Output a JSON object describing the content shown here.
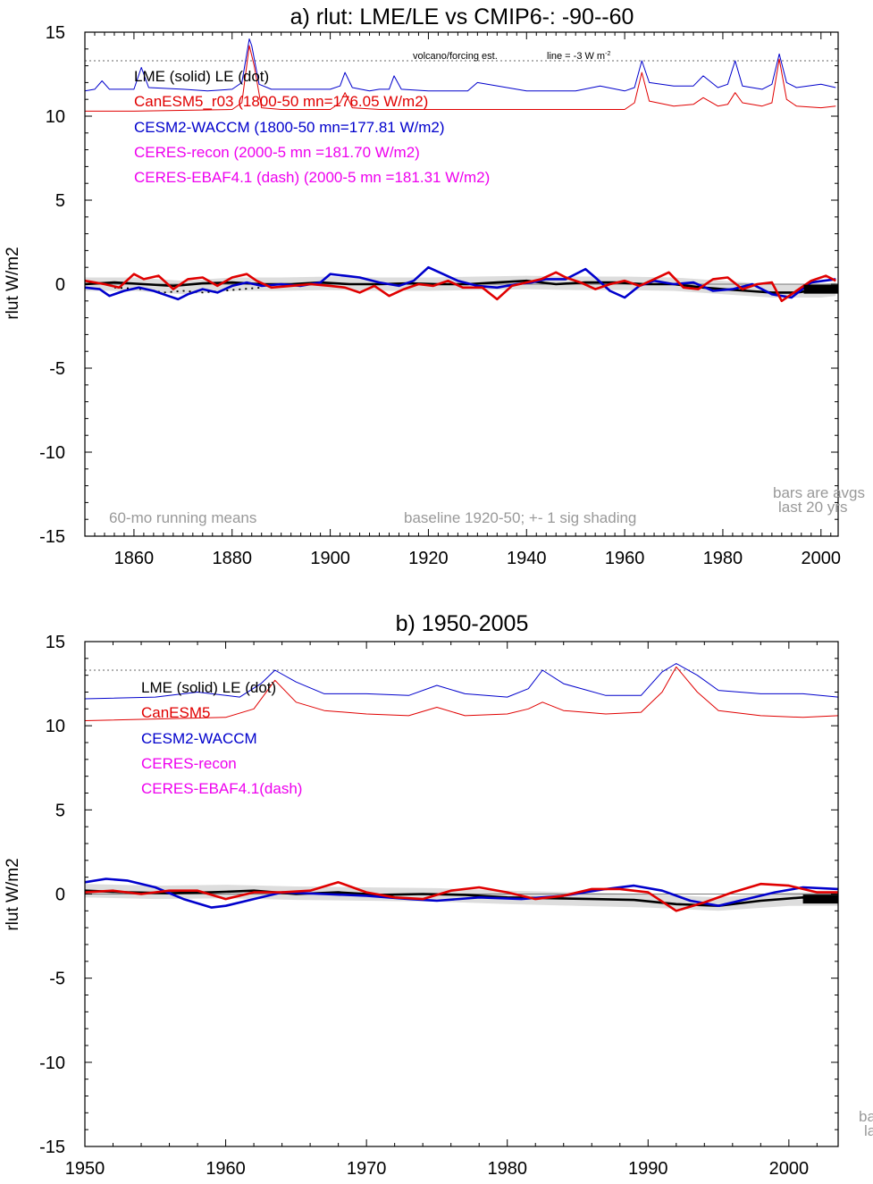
{
  "chart_data": [
    {
      "type": "line",
      "title": "a) rlut: LME/LE vs CMIP6-: -90--60",
      "ylabel": "rlut W/m2",
      "xlabel": "",
      "xlim": [
        1850,
        2003.5
      ],
      "ylim": [
        -15,
        15
      ],
      "x_ticks": [
        1860,
        1880,
        1900,
        1920,
        1940,
        1960,
        1980,
        2000
      ],
      "y_ticks": [
        15,
        10,
        5,
        0,
        -5,
        -10,
        -15
      ],
      "grid": false,
      "legend": [
        {
          "text": "LME (solid)   LE (dot)",
          "color": "#000000"
        },
        {
          "text": "CanESM5_r03 (1800-50 mn=176.05 W/m2)",
          "color": "#e00000"
        },
        {
          "text": "CESM2-WACCM (1800-50 mn=177.81 W/m2)",
          "color": "#0000cc"
        },
        {
          "text": "CERES-recon (2000-5 mn =181.70 W/m2)",
          "color": "#ee00ee"
        },
        {
          "text": "CERES-EBAF4.1 (dash) (2000-5 mn =181.31 W/m2)",
          "color": "#ee00ee"
        }
      ],
      "annotations": {
        "volcano": "volcano/forcing est.",
        "line_note": "line = -3 W m",
        "line_note_sup": "-2",
        "running": "60-mo running means",
        "baseline": "baseline 1920-50; +- 1 sig shading",
        "bars1": "bars are avgs",
        "bars2": "last 20 yrs"
      },
      "reference_line_y": 13.3,
      "series": [
        {
          "name": "CESM2-WACCM (volcano/forcing est.)",
          "color": "#0000cc",
          "width": 1,
          "x": [
            1850,
            1852,
            1853.5,
            1855,
            1860,
            1861.5,
            1863,
            1870,
            1875,
            1880,
            1882,
            1883.5,
            1884,
            1885.5,
            1888,
            1895,
            1900,
            1902,
            1903,
            1904.5,
            1908,
            1910,
            1912,
            1913,
            1914.5,
            1920,
            1928,
            1930,
            1938,
            1940,
            1950,
            1955,
            1960,
            1962,
            1963.5,
            1965,
            1970,
            1974,
            1976,
            1979,
            1981,
            1982.5,
            1984,
            1988,
            1990,
            1991.5,
            1993,
            1995,
            2000,
            2003
          ],
          "y": [
            11.5,
            11.6,
            12.1,
            11.6,
            11.6,
            12.9,
            11.7,
            11.6,
            11.5,
            11.6,
            12.0,
            14.6,
            14.2,
            11.9,
            11.6,
            11.6,
            11.6,
            11.8,
            12.6,
            11.7,
            11.5,
            11.6,
            11.6,
            12.4,
            11.6,
            11.5,
            11.5,
            12.0,
            11.6,
            11.5,
            11.5,
            11.8,
            11.5,
            11.7,
            13.3,
            12.0,
            11.8,
            11.8,
            12.4,
            11.7,
            11.9,
            13.3,
            11.8,
            11.6,
            11.9,
            13.7,
            12.0,
            11.7,
            11.9,
            11.7
          ]
        },
        {
          "name": "CanESM5 (volcano/forcing est.)",
          "color": "#e00000",
          "width": 1,
          "x": [
            1850,
            1860,
            1880,
            1882,
            1883.5,
            1884.5,
            1886,
            1890,
            1900,
            1902,
            1903,
            1904.5,
            1910,
            1920,
            1940,
            1950,
            1960,
            1962,
            1963.5,
            1965,
            1970,
            1974,
            1976,
            1979,
            1981,
            1982.5,
            1984,
            1988,
            1990,
            1991.5,
            1993,
            1995,
            2000,
            2003
          ],
          "y": [
            10.3,
            10.3,
            10.4,
            10.8,
            14.2,
            13.0,
            10.5,
            10.4,
            10.4,
            10.8,
            11.4,
            10.5,
            10.4,
            10.4,
            10.4,
            10.4,
            10.4,
            10.8,
            12.6,
            10.9,
            10.6,
            10.7,
            11.1,
            10.6,
            10.7,
            11.4,
            10.8,
            10.6,
            10.8,
            13.4,
            11.0,
            10.6,
            10.5,
            10.6
          ]
        },
        {
          "name": "LME",
          "color": "#000000",
          "width": 2.6,
          "x": [
            1850,
            1856,
            1862,
            1868,
            1874,
            1880,
            1886,
            1892,
            1898,
            1904,
            1910,
            1916,
            1922,
            1928,
            1934,
            1940,
            1946,
            1952,
            1958,
            1964,
            1970,
            1976,
            1980,
            1985,
            1990,
            1995,
            2000,
            2003
          ],
          "y": [
            0.0,
            0.1,
            0.0,
            -0.1,
            0.05,
            0.1,
            0.0,
            0.0,
            0.1,
            0.0,
            0.0,
            0.05,
            0.0,
            0.0,
            0.1,
            0.2,
            0.0,
            0.1,
            0.1,
            0.0,
            0.0,
            -0.2,
            -0.3,
            -0.4,
            -0.5,
            -0.5,
            -0.3,
            -0.3
          ]
        },
        {
          "name": "LE",
          "color": "#000000",
          "width": 1.8,
          "dash": "2 5",
          "x": [
            1856,
            1862,
            1866,
            1870,
            1874,
            1878,
            1882,
            1886
          ],
          "y": [
            -0.2,
            -0.3,
            -0.5,
            -0.4,
            -0.5,
            -0.4,
            -0.3,
            -0.2
          ]
        },
        {
          "name": "CESM2-WACCM",
          "color": "#0000cc",
          "width": 2.6,
          "x": [
            1850,
            1853,
            1855,
            1858,
            1861,
            1864,
            1867,
            1869,
            1871,
            1874,
            1877,
            1880,
            1883,
            1886,
            1890,
            1894,
            1898,
            1900,
            1903,
            1906,
            1910,
            1914,
            1917,
            1920,
            1923,
            1926,
            1930,
            1934,
            1938,
            1941,
            1944,
            1948,
            1952,
            1954,
            1957,
            1960,
            1963,
            1966,
            1970,
            1974,
            1978,
            1982,
            1986,
            1990,
            1994,
            1998,
            2003
          ],
          "y": [
            -0.2,
            -0.3,
            -0.7,
            -0.4,
            -0.2,
            -0.4,
            -0.7,
            -0.9,
            -0.6,
            -0.3,
            -0.5,
            -0.1,
            0.1,
            -0.1,
            0.0,
            -0.1,
            0.1,
            0.6,
            0.5,
            0.4,
            0.1,
            -0.1,
            0.2,
            1.0,
            0.6,
            0.2,
            -0.1,
            -0.2,
            0.0,
            0.1,
            0.3,
            0.3,
            0.9,
            0.4,
            -0.4,
            -0.8,
            -0.1,
            0.2,
            0.0,
            0.1,
            -0.4,
            -0.3,
            0.0,
            -0.6,
            -0.8,
            0.1,
            0.3
          ]
        },
        {
          "name": "CanESM5",
          "color": "#e00000",
          "width": 2.6,
          "x": [
            1850,
            1854,
            1857,
            1860,
            1862,
            1865,
            1868,
            1871,
            1874,
            1877,
            1880,
            1883,
            1885,
            1888,
            1892,
            1896,
            1900,
            1903,
            1906,
            1909,
            1912,
            1915,
            1918,
            1921,
            1924,
            1927,
            1931,
            1934,
            1937,
            1940,
            1943,
            1946,
            1948,
            1951,
            1954,
            1957,
            1960,
            1963,
            1966,
            1969,
            1972,
            1975,
            1978,
            1981,
            1984,
            1987,
            1990,
            1992,
            1995,
            1998,
            2001,
            2003
          ],
          "y": [
            0.2,
            0.0,
            -0.2,
            0.6,
            0.3,
            0.5,
            -0.3,
            0.3,
            0.4,
            -0.1,
            0.4,
            0.6,
            0.2,
            -0.2,
            -0.1,
            0.0,
            -0.1,
            -0.2,
            -0.5,
            -0.1,
            -0.7,
            -0.3,
            0.0,
            -0.1,
            0.2,
            -0.2,
            -0.2,
            -0.9,
            -0.1,
            0.1,
            0.3,
            0.7,
            0.4,
            0.1,
            -0.3,
            0.0,
            0.2,
            -0.1,
            0.3,
            0.7,
            -0.2,
            -0.3,
            0.3,
            0.4,
            -0.3,
            0.0,
            0.1,
            -1.0,
            -0.4,
            0.2,
            0.5,
            0.2
          ]
        }
      ],
      "shading": {
        "color": "#dddddd",
        "x": [
          1850,
          1860,
          1870,
          1880,
          1890,
          1900,
          1910,
          1920,
          1930,
          1940,
          1950,
          1960,
          1970,
          1980,
          1990,
          2000,
          2003
        ],
        "center": [
          0.0,
          0.0,
          -0.2,
          0.0,
          0.0,
          0.05,
          0.0,
          0.0,
          0.05,
          0.1,
          0.05,
          0.05,
          0.0,
          -0.2,
          -0.4,
          -0.4,
          -0.3
        ],
        "spread": 0.4
      },
      "bars": [
        {
          "x0": 1996.5,
          "x1": 2003.5,
          "y": -0.3,
          "color": "#000000"
        }
      ]
    },
    {
      "type": "line",
      "title": "b) 1950-2005",
      "ylabel": "rlut W/m2",
      "xlabel": "",
      "xlim": [
        1950,
        2003.5
      ],
      "ylim": [
        -15,
        15
      ],
      "x_ticks": [
        1950,
        1960,
        1970,
        1980,
        1990,
        2000
      ],
      "y_ticks": [
        15,
        10,
        5,
        0,
        -5,
        -10,
        -15
      ],
      "grid": false,
      "legend": [
        {
          "text": "LME (solid)      LE (dot)",
          "color": "#000000"
        },
        {
          "text": "CanESM5",
          "color": "#e00000"
        },
        {
          "text": "CESM2-WACCM",
          "color": "#0000cc"
        },
        {
          "text": "CERES-recon",
          "color": "#ee00ee"
        },
        {
          "text": "CERES-EBAF4.1(dash)",
          "color": "#ee00ee"
        }
      ],
      "annotations": {
        "bars1": "ba",
        "bars2": "la"
      },
      "reference_line_y": 13.3,
      "series": [
        {
          "name": "CESM2-WACCM (volcano/forcing est.)",
          "color": "#0000cc",
          "width": 1,
          "x": [
            1950,
            1955,
            1958,
            1961,
            1962.5,
            1963.5,
            1965,
            1967,
            1970,
            1973,
            1975,
            1977,
            1980,
            1981.5,
            1982.5,
            1984,
            1987,
            1989.5,
            1991,
            1992,
            1993.5,
            1995,
            1998,
            2001,
            2003.5
          ],
          "y": [
            11.6,
            11.7,
            12.0,
            11.7,
            12.5,
            13.3,
            12.6,
            11.9,
            11.9,
            11.8,
            12.4,
            11.9,
            11.7,
            12.2,
            13.3,
            12.5,
            11.8,
            11.8,
            13.2,
            13.7,
            13.0,
            12.1,
            11.9,
            11.9,
            11.7
          ]
        },
        {
          "name": "CanESM5 (volcano/forcing est.)",
          "color": "#e00000",
          "width": 1,
          "x": [
            1950,
            1955,
            1960,
            1962,
            1963.5,
            1965,
            1967,
            1970,
            1973,
            1975,
            1977,
            1980,
            1981.5,
            1982.5,
            1984,
            1987,
            1989.5,
            1991,
            1992,
            1993.5,
            1995,
            1998,
            2001,
            2003.5
          ],
          "y": [
            10.3,
            10.4,
            10.5,
            11.0,
            12.7,
            11.4,
            10.9,
            10.7,
            10.6,
            11.1,
            10.6,
            10.7,
            11.0,
            11.4,
            10.9,
            10.7,
            10.8,
            12.0,
            13.5,
            12.0,
            10.9,
            10.6,
            10.5,
            10.6
          ]
        },
        {
          "name": "LME",
          "color": "#000000",
          "width": 2.6,
          "x": [
            1950,
            1953,
            1956,
            1959,
            1962,
            1965,
            1968,
            1971,
            1974,
            1977,
            1980,
            1983,
            1986,
            1989,
            1992,
            1995,
            1998,
            2001,
            2003.5
          ],
          "y": [
            0.2,
            0.1,
            0.05,
            0.1,
            0.2,
            0.0,
            0.1,
            -0.05,
            0.0,
            -0.05,
            -0.2,
            -0.25,
            -0.3,
            -0.35,
            -0.6,
            -0.7,
            -0.4,
            -0.2,
            -0.3
          ]
        },
        {
          "name": "CESM2-WACCM",
          "color": "#0000cc",
          "width": 2.6,
          "x": [
            1950,
            1951.5,
            1953,
            1955,
            1957,
            1959,
            1960,
            1962,
            1964,
            1967,
            1970,
            1973,
            1975,
            1978,
            1981,
            1984,
            1987,
            1989,
            1991,
            1993,
            1995,
            1997,
            1999,
            2001,
            2003.5
          ],
          "y": [
            0.7,
            0.9,
            0.8,
            0.4,
            -0.3,
            -0.8,
            -0.7,
            -0.3,
            0.1,
            0.0,
            -0.1,
            -0.3,
            -0.4,
            -0.2,
            -0.3,
            -0.1,
            0.3,
            0.5,
            0.2,
            -0.4,
            -0.7,
            -0.3,
            0.1,
            0.4,
            0.3
          ]
        },
        {
          "name": "CanESM5",
          "color": "#e00000",
          "width": 2.6,
          "x": [
            1950,
            1952,
            1954,
            1956,
            1958,
            1960,
            1962,
            1964,
            1966,
            1968,
            1970,
            1972,
            1974,
            1976,
            1978,
            1980,
            1982,
            1984,
            1986,
            1988,
            1990,
            1992,
            1994,
            1996,
            1998,
            2000,
            2002,
            2003.5
          ],
          "y": [
            0.1,
            0.2,
            0.0,
            0.2,
            0.2,
            -0.3,
            0.1,
            0.1,
            0.2,
            0.7,
            0.1,
            -0.2,
            -0.3,
            0.2,
            0.4,
            0.1,
            -0.3,
            -0.1,
            0.3,
            0.3,
            0.1,
            -1.0,
            -0.5,
            0.1,
            0.6,
            0.5,
            0.1,
            0.1
          ]
        }
      ],
      "shading": {
        "color": "#dddddd",
        "x": [
          1950,
          1955,
          1960,
          1965,
          1970,
          1975,
          1980,
          1985,
          1990,
          1995,
          2000,
          2003.5
        ],
        "center": [
          0.2,
          0.1,
          0.15,
          0.05,
          0.0,
          -0.05,
          -0.2,
          -0.3,
          -0.4,
          -0.6,
          -0.3,
          -0.3
        ],
        "spread": 0.4
      },
      "bars": [
        {
          "x0": 2001,
          "x1": 2003.5,
          "y": -0.3,
          "color": "#000000"
        }
      ]
    }
  ]
}
